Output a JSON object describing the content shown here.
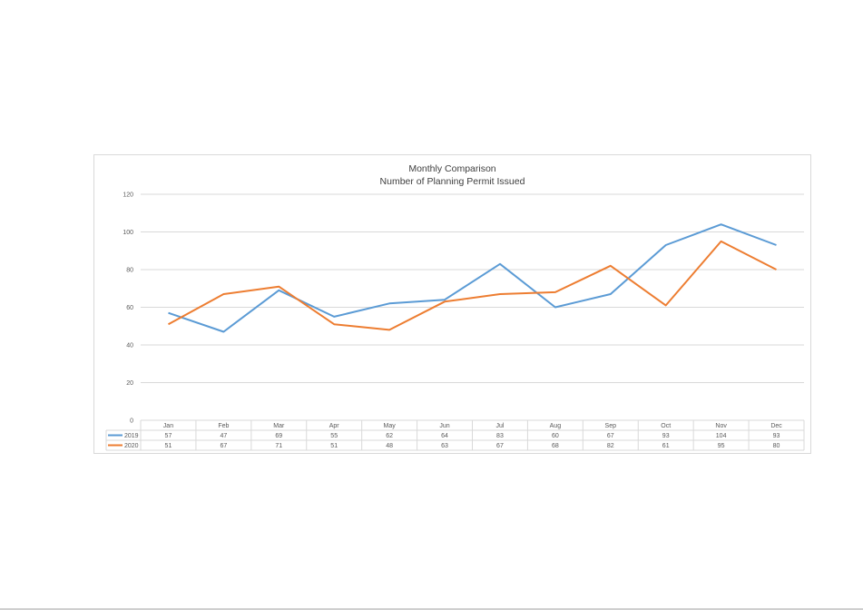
{
  "chart_data": {
    "type": "line",
    "title": "Monthly Comparison",
    "subtitle": "Number of Planning Permit Issued",
    "categories": [
      "Jan",
      "Feb",
      "Mar",
      "Apr",
      "May",
      "Jun",
      "Jul",
      "Aug",
      "Sep",
      "Oct",
      "Nov",
      "Dec"
    ],
    "series": [
      {
        "name": "2019",
        "color": "#5b9bd5",
        "values": [
          57,
          47,
          69,
          55,
          62,
          64,
          83,
          60,
          67,
          93,
          104,
          93
        ]
      },
      {
        "name": "2020",
        "color": "#ed7d31",
        "values": [
          51,
          67,
          71,
          51,
          48,
          63,
          67,
          68,
          82,
          61,
          95,
          80
        ]
      }
    ],
    "ylim": [
      0,
      120
    ],
    "yticks": [
      0,
      20,
      40,
      60,
      80,
      100,
      120
    ],
    "grid": true,
    "data_table": true
  }
}
